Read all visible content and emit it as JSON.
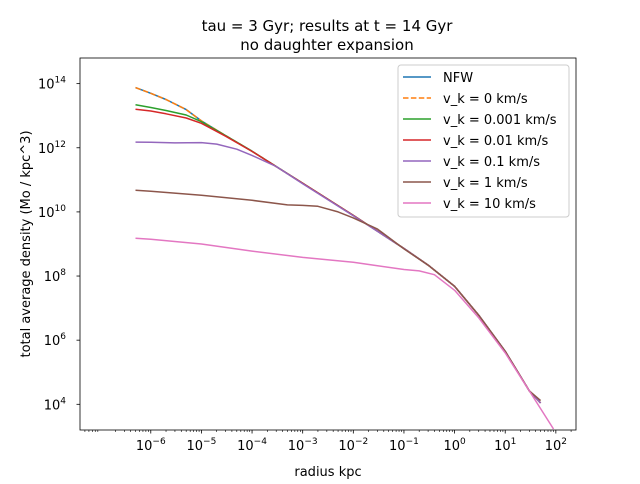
{
  "chart_data": {
    "type": "line",
    "title": "tau = 3 Gyr; results at t = 14 Gyr",
    "subtitle": "no daughter expansion",
    "xlabel": "radius kpc",
    "ylabel": "total average density (Mo / kpc^3)",
    "xscale": "log",
    "yscale": "log",
    "xlim": [
      4e-08,
      250
    ],
    "ylim": [
      1580.0,
      630000000000000.0
    ],
    "x_ticks": [
      {
        "value": 1e-06,
        "base": "10",
        "exp": "−6"
      },
      {
        "value": 1e-05,
        "base": "10",
        "exp": "−5"
      },
      {
        "value": 0.0001,
        "base": "10",
        "exp": "−4"
      },
      {
        "value": 0.001,
        "base": "10",
        "exp": "−3"
      },
      {
        "value": 0.01,
        "base": "10",
        "exp": "−2"
      },
      {
        "value": 0.1,
        "base": "10",
        "exp": "−1"
      },
      {
        "value": 1,
        "base": "10",
        "exp": "0"
      },
      {
        "value": 10,
        "base": "10",
        "exp": "1"
      },
      {
        "value": 100,
        "base": "10",
        "exp": "2"
      }
    ],
    "y_ticks": [
      {
        "value": 10000.0,
        "base": "10",
        "exp": "4"
      },
      {
        "value": 1000000.0,
        "base": "10",
        "exp": "6"
      },
      {
        "value": 100000000.0,
        "base": "10",
        "exp": "8"
      },
      {
        "value": 10000000000.0,
        "base": "10",
        "exp": "10"
      },
      {
        "value": 1000000000000.0,
        "base": "10",
        "exp": "12"
      },
      {
        "value": 100000000000000.0,
        "base": "10",
        "exp": "14"
      }
    ],
    "grid": false,
    "legend_position": "upper-right",
    "series": [
      {
        "name": "NFW",
        "color": "#1f77b4",
        "dashed": false,
        "points": [
          [
            5e-07,
            75000000000000.0
          ],
          [
            1e-06,
            50000000000000.0
          ],
          [
            2e-06,
            32000000000000.0
          ],
          [
            5e-06,
            15500000000000.0
          ],
          [
            1e-05,
            6900000000000.0
          ],
          [
            3e-05,
            2400000000000.0
          ],
          [
            0.0001,
            780000000000.0
          ],
          [
            0.001,
            78000000000.0
          ],
          [
            0.01,
            7800000000.0
          ],
          [
            0.1,
            720000000.0
          ],
          [
            0.3,
            220000000.0
          ],
          [
            1,
            48000000.0
          ],
          [
            3,
            6000000.0
          ],
          [
            10,
            450000.0
          ],
          [
            30,
            26000.0
          ],
          [
            50,
            11000.0
          ]
        ]
      },
      {
        "name": "v_k = 0 km/s",
        "color": "#ff7f0e",
        "dashed": true,
        "points": [
          [
            5e-07,
            75000000000000.0
          ],
          [
            1e-06,
            50000000000000.0
          ],
          [
            2e-06,
            32000000000000.0
          ],
          [
            5e-06,
            15500000000000.0
          ],
          [
            1e-05,
            6900000000000.0
          ],
          [
            3e-05,
            2400000000000.0
          ],
          [
            0.0001,
            780000000000.0
          ],
          [
            0.001,
            78000000000.0
          ],
          [
            0.01,
            7800000000.0
          ],
          [
            0.1,
            720000000.0
          ],
          [
            0.3,
            220000000.0
          ],
          [
            1,
            48000000.0
          ],
          [
            3,
            6000000.0
          ],
          [
            10,
            450000.0
          ],
          [
            30,
            26000.0
          ],
          [
            50,
            11000.0
          ]
        ]
      },
      {
        "name": "v_k = 0.001 km/s",
        "color": "#2ca02c",
        "dashed": false,
        "points": [
          [
            5e-07,
            22000000000000.0
          ],
          [
            1e-06,
            18000000000000.0
          ],
          [
            2e-06,
            14500000000000.0
          ],
          [
            5e-06,
            10500000000000.0
          ],
          [
            1e-05,
            6500000000000.0
          ],
          [
            3e-05,
            2400000000000.0
          ],
          [
            0.0001,
            780000000000.0
          ],
          [
            0.001,
            78000000000.0
          ],
          [
            0.01,
            7800000000.0
          ],
          [
            0.1,
            720000000.0
          ],
          [
            0.3,
            220000000.0
          ],
          [
            1,
            48000000.0
          ],
          [
            3,
            6000000.0
          ],
          [
            10,
            450000.0
          ],
          [
            30,
            26000.0
          ],
          [
            50,
            11000.0
          ]
        ]
      },
      {
        "name": "v_k = 0.01 km/s",
        "color": "#d62728",
        "dashed": false,
        "points": [
          [
            5e-07,
            16000000000000.0
          ],
          [
            1e-06,
            14000000000000.0
          ],
          [
            2e-06,
            11500000000000.0
          ],
          [
            5e-06,
            8500000000000.0
          ],
          [
            1e-05,
            5800000000000.0
          ],
          [
            3e-05,
            2300000000000.0
          ],
          [
            0.0001,
            770000000000.0
          ],
          [
            0.001,
            78000000000.0
          ],
          [
            0.01,
            7800000000.0
          ],
          [
            0.1,
            720000000.0
          ],
          [
            0.3,
            220000000.0
          ],
          [
            1,
            48000000.0
          ],
          [
            3,
            6000000.0
          ],
          [
            10,
            450000.0
          ],
          [
            30,
            26000.0
          ],
          [
            50,
            11000.0
          ]
        ]
      },
      {
        "name": "v_k = 0.1 km/s",
        "color": "#9467bd",
        "dashed": false,
        "points": [
          [
            5e-07,
            1500000000000.0
          ],
          [
            1e-06,
            1480000000000.0
          ],
          [
            3e-06,
            1420000000000.0
          ],
          [
            1e-05,
            1450000000000.0
          ],
          [
            2e-05,
            1300000000000.0
          ],
          [
            5e-05,
            900000000000.0
          ],
          [
            0.0001,
            580000000000.0
          ],
          [
            0.0003,
            260000000000.0
          ],
          [
            0.001,
            76000000000.0
          ],
          [
            0.01,
            7600000000.0
          ],
          [
            0.1,
            720000000.0
          ],
          [
            0.3,
            220000000.0
          ],
          [
            1,
            48000000.0
          ],
          [
            3,
            6000000.0
          ],
          [
            10,
            450000.0
          ],
          [
            30,
            26000.0
          ],
          [
            50,
            11000.0
          ]
        ]
      },
      {
        "name": "v_k = 1 km/s",
        "color": "#8c564b",
        "dashed": false,
        "points": [
          [
            5e-07,
            47000000000.0
          ],
          [
            1e-06,
            44000000000.0
          ],
          [
            1e-05,
            33000000000.0
          ],
          [
            0.0001,
            23000000000.0
          ],
          [
            0.0005,
            16500000000.0
          ],
          [
            0.001,
            16000000000.0
          ],
          [
            0.002,
            15000000000.0
          ],
          [
            0.005,
            10000000000.0
          ],
          [
            0.01,
            6500000000.0
          ],
          [
            0.03,
            2900000000.0
          ],
          [
            0.1,
            700000000.0
          ],
          [
            0.3,
            220000000.0
          ],
          [
            1,
            48000000.0
          ],
          [
            3,
            6000000.0
          ],
          [
            10,
            450000.0
          ],
          [
            30,
            26000.0
          ],
          [
            50,
            13000.0
          ]
        ]
      },
      {
        "name": "v_k = 10 km/s",
        "color": "#e377c2",
        "dashed": false,
        "points": [
          [
            5e-07,
            1500000000.0
          ],
          [
            1e-06,
            1400000000.0
          ],
          [
            1e-05,
            1000000000.0
          ],
          [
            0.0001,
            600000000.0
          ],
          [
            0.001,
            380000000.0
          ],
          [
            0.01,
            270000000.0
          ],
          [
            0.03,
            210000000.0
          ],
          [
            0.1,
            160000000.0
          ],
          [
            0.2,
            145000000.0
          ],
          [
            0.4,
            110000000.0
          ],
          [
            1,
            36000000.0
          ],
          [
            3,
            5000000.0
          ],
          [
            10,
            400000.0
          ],
          [
            30,
            26000.0
          ],
          [
            90,
            1700.0
          ]
        ]
      }
    ]
  }
}
